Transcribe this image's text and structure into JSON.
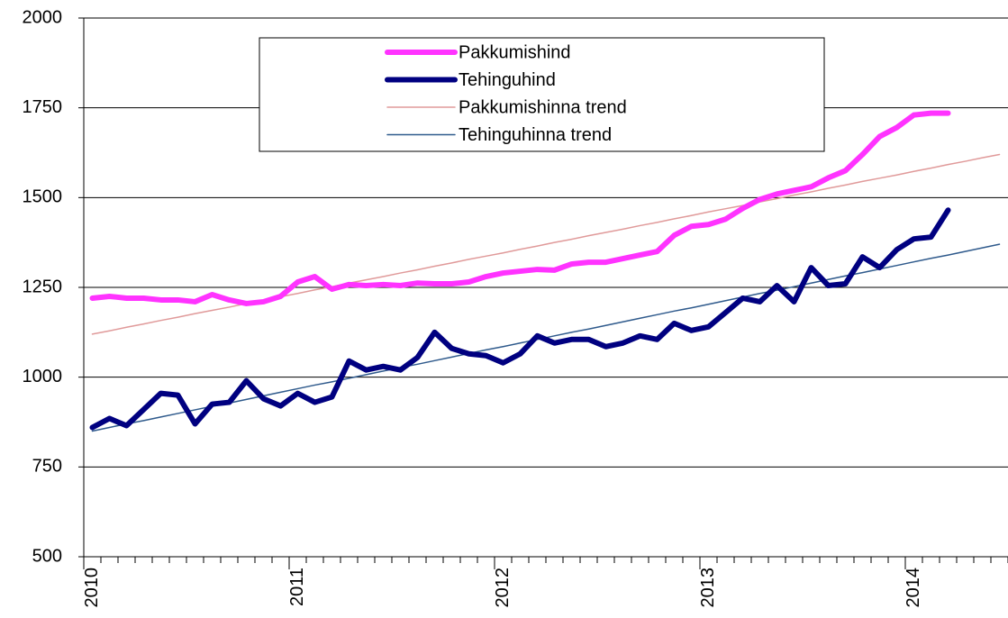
{
  "chart_data": {
    "type": "line",
    "categories": [
      "2010",
      null,
      null,
      null,
      null,
      null,
      null,
      null,
      null,
      null,
      null,
      null,
      "2011",
      null,
      null,
      null,
      null,
      null,
      null,
      null,
      null,
      null,
      null,
      null,
      "2012",
      null,
      null,
      null,
      null,
      null,
      null,
      null,
      null,
      null,
      null,
      null,
      "2013",
      null,
      null,
      null,
      null,
      null,
      null,
      null,
      null,
      null,
      null,
      null,
      "2014",
      null,
      null,
      null,
      null,
      null
    ],
    "series": [
      {
        "name": "Pakkumishind",
        "color": "#ff33ff",
        "width": 6,
        "values": [
          1220,
          1225,
          1220,
          1220,
          1215,
          1215,
          1210,
          1230,
          1215,
          1205,
          1210,
          1225,
          1265,
          1280,
          1245,
          1258,
          1255,
          1258,
          1255,
          1262,
          1260,
          1260,
          1265,
          1280,
          1290,
          1295,
          1300,
          1298,
          1315,
          1320,
          1320,
          1330,
          1340,
          1350,
          1395,
          1420,
          1425,
          1440,
          1470,
          1495,
          1510,
          1520,
          1530,
          1555,
          1575,
          1620,
          1670,
          1695,
          1730,
          1735,
          1735,
          null,
          null,
          null
        ]
      },
      {
        "name": "Tehinguhind",
        "color": "#000080",
        "width": 6,
        "values": [
          860,
          885,
          865,
          910,
          955,
          950,
          870,
          925,
          930,
          990,
          940,
          920,
          955,
          930,
          945,
          1045,
          1020,
          1030,
          1020,
          1055,
          1125,
          1080,
          1065,
          1060,
          1040,
          1065,
          1115,
          1095,
          1105,
          1105,
          1085,
          1095,
          1115,
          1105,
          1150,
          1130,
          1140,
          1180,
          1220,
          1210,
          1255,
          1210,
          1305,
          1255,
          1260,
          1335,
          1305,
          1355,
          1385,
          1390,
          1465,
          null,
          null,
          null
        ]
      },
      {
        "name": "Pakkumishinna trend",
        "color": "#e09a9a",
        "width": 1.5,
        "values": [
          1120,
          1129,
          1139,
          1148,
          1158,
          1167,
          1177,
          1186,
          1195,
          1205,
          1214,
          1224,
          1233,
          1243,
          1252,
          1262,
          1271,
          1280,
          1290,
          1299,
          1309,
          1318,
          1328,
          1337,
          1346,
          1356,
          1365,
          1375,
          1384,
          1394,
          1403,
          1412,
          1422,
          1431,
          1441,
          1450,
          1460,
          1469,
          1478,
          1488,
          1497,
          1507,
          1516,
          1526,
          1535,
          1545,
          1554,
          1563,
          1573,
          1582,
          1592,
          1601,
          1611,
          1620
        ]
      },
      {
        "name": "Tehinguhinna trend",
        "color": "#2f5a8c",
        "width": 1.5,
        "values": [
          850,
          860,
          870,
          879,
          889,
          899,
          909,
          919,
          928,
          938,
          948,
          958,
          968,
          978,
          987,
          997,
          1007,
          1017,
          1027,
          1036,
          1046,
          1056,
          1066,
          1076,
          1085,
          1095,
          1105,
          1115,
          1125,
          1134,
          1144,
          1154,
          1164,
          1174,
          1184,
          1193,
          1203,
          1213,
          1223,
          1233,
          1242,
          1252,
          1262,
          1272,
          1282,
          1291,
          1301,
          1311,
          1321,
          1331,
          1340,
          1350,
          1360,
          1370
        ]
      }
    ],
    "ylim": [
      500,
      2000
    ],
    "yticks": [
      500,
      750,
      1000,
      1250,
      1500,
      1750,
      2000
    ],
    "grid": true,
    "legend": "top"
  }
}
